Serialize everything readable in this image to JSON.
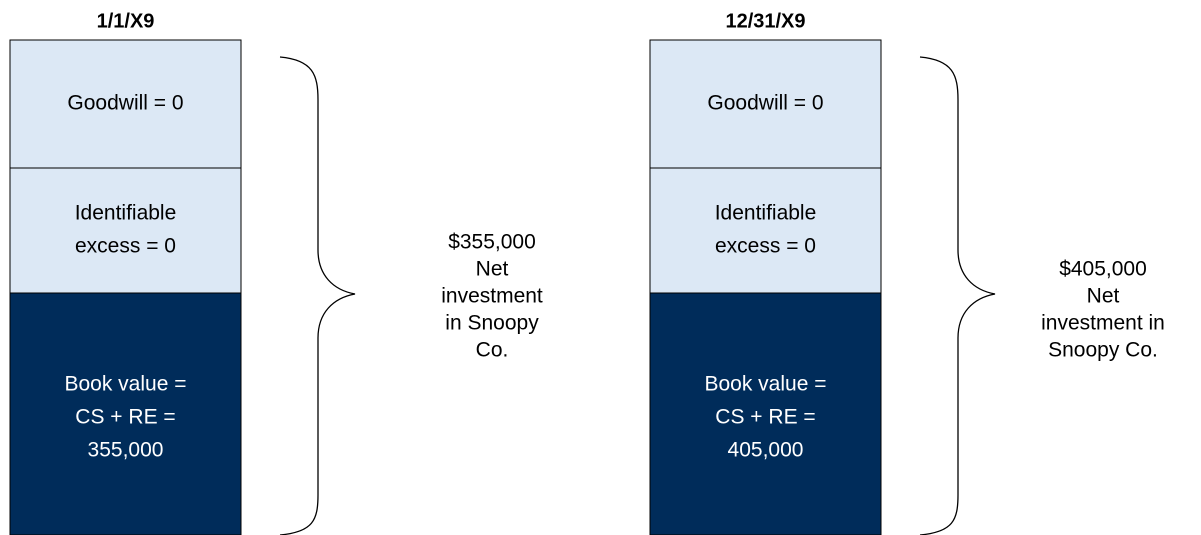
{
  "columns": [
    {
      "header": "1/1/X9",
      "boxes": [
        {
          "lines": [
            "Goodwill = 0"
          ]
        },
        {
          "lines": [
            "Identifiable",
            "excess = 0"
          ]
        },
        {
          "lines": [
            "Book value =",
            "CS + RE =",
            "355,000"
          ]
        }
      ],
      "label": [
        "$355,000",
        "Net",
        "investment",
        "in Snoopy",
        "Co."
      ]
    },
    {
      "header": "12/31/X9",
      "boxes": [
        {
          "lines": [
            "Goodwill = 0"
          ]
        },
        {
          "lines": [
            "Identifiable",
            "excess = 0"
          ]
        },
        {
          "lines": [
            "Book value =",
            "CS + RE =",
            "405,000"
          ]
        }
      ],
      "label": [
        "$405,000",
        "Net",
        "investment in",
        "Snoopy Co."
      ]
    }
  ]
}
